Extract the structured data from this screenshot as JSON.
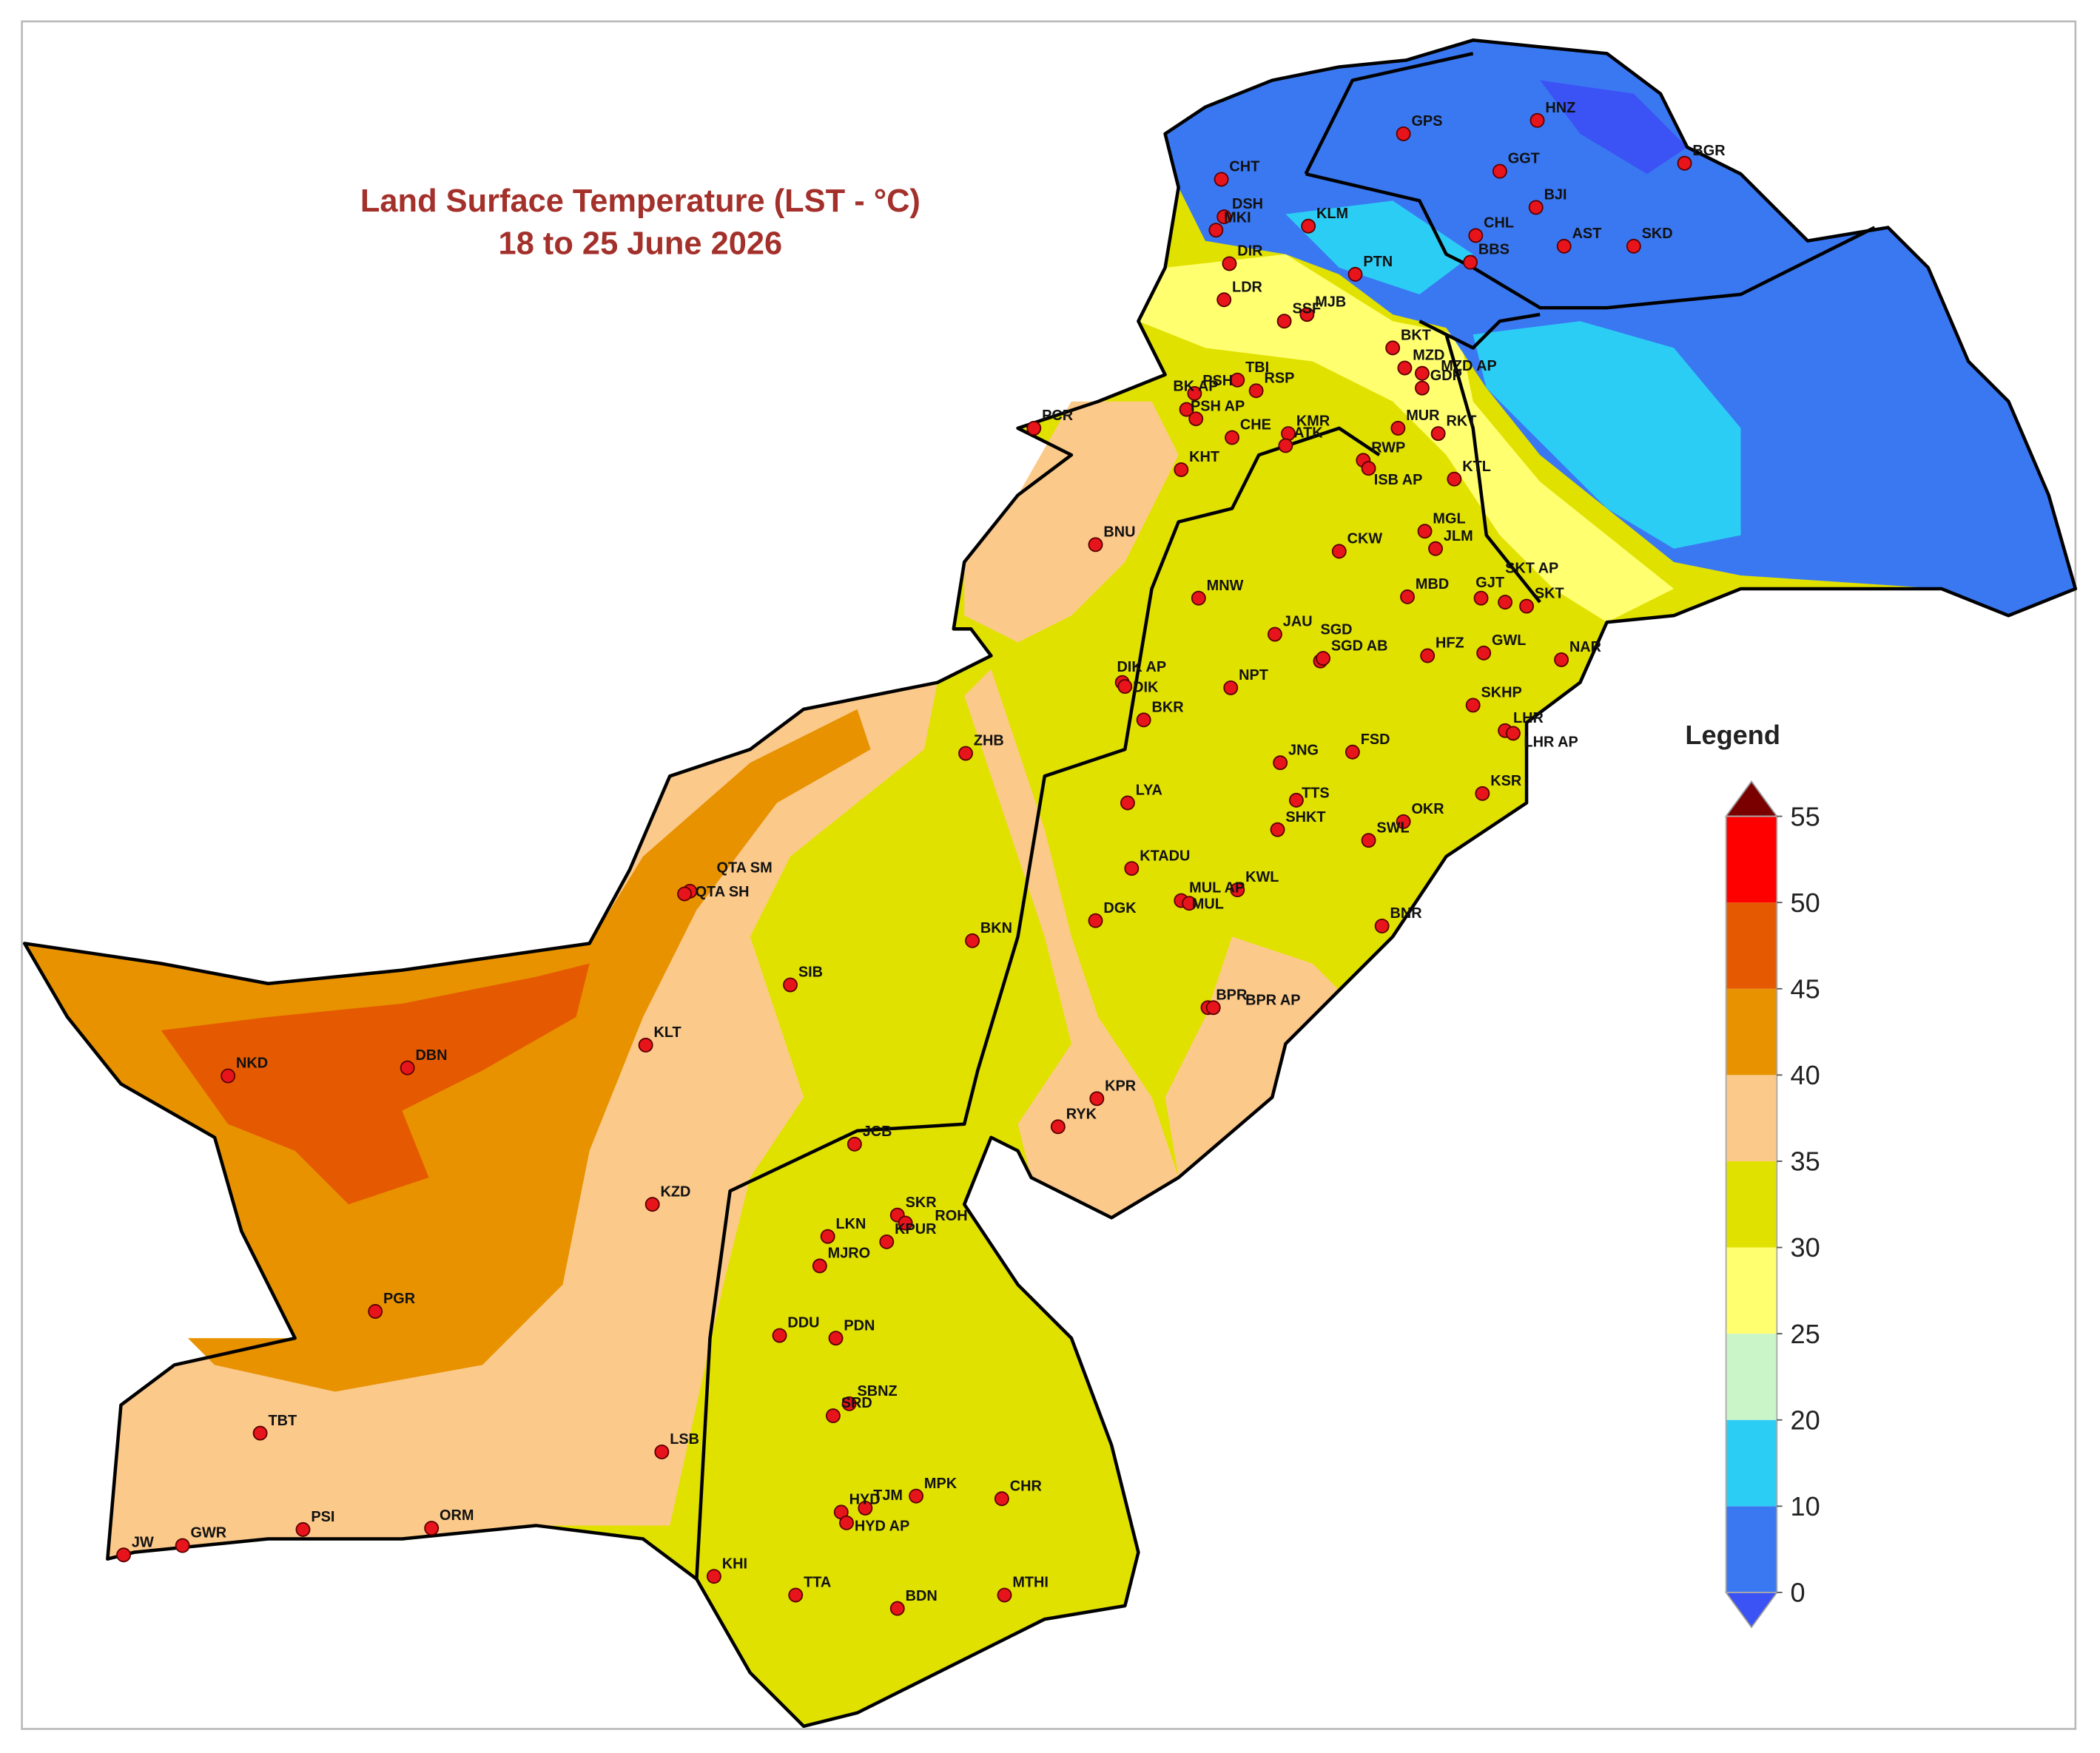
{
  "title": "Land Surface Temperature (LST - °C)",
  "subtitle": "18 to 25 June 2026",
  "legend": {
    "title": "Legend",
    "ticks": [
      0,
      10,
      20,
      25,
      30,
      35,
      40,
      45,
      50,
      55
    ],
    "colors": [
      "#3a78f2",
      "#2ccdf5",
      "#c9f5c9",
      "#ffff70",
      "#e1e100",
      "#fbc98a",
      "#e89200",
      "#e55a00",
      "#ff0000"
    ],
    "under_color": "#3b52f5",
    "over_color": "#7a0000"
  },
  "stations": [
    "HNZ",
    "GPS",
    "BGR",
    "GGT",
    "CHT",
    "BJI",
    "DSH",
    "MKI",
    "KLM",
    "CHL",
    "AST",
    "SKD",
    "BBS",
    "PTN",
    "DIR",
    "LDR",
    "SSF",
    "MJB",
    "BKT",
    "MZD",
    "MZD AP",
    "TBI",
    "PSH",
    "BK AP",
    "PSH AP",
    "RSP",
    "GDP",
    "MUR",
    "RKT",
    "PCR",
    "CHE",
    "KMR",
    "ATK",
    "RWP",
    "ISB AP",
    "KHT",
    "KTL",
    "MGL",
    "JLM",
    "BNU",
    "CKW",
    "MNW",
    "MBD",
    "GJT",
    "SKT AP",
    "SKT",
    "JAU",
    "SGD",
    "SGD AB",
    "HFZ",
    "GWL",
    "NAR",
    "DIK AP",
    "DIK",
    "NPT",
    "SKHP",
    "LHR",
    "LHR AP",
    "BKR",
    "ZHB",
    "FSD",
    "JNG",
    "LYA",
    "TTS",
    "KSR",
    "OKR",
    "SHKT",
    "SWL",
    "QTA SM",
    "QTA SH",
    "KTADU",
    "MUL AP",
    "MUL",
    "KWL",
    "DGK",
    "BNR",
    "BKN",
    "SIB",
    "BPR",
    "BPR AP",
    "KLT",
    "NKD",
    "DBN",
    "KPR",
    "RYK",
    "JCB",
    "KZD",
    "SKR",
    "ROH",
    "LKN",
    "KPUR",
    "MJRO",
    "PGR",
    "DDU",
    "PDN",
    "SBNZ",
    "SRD",
    "TBT",
    "LSB",
    "HYD",
    "TJM",
    "MPK",
    "CHR",
    "HYD AP",
    "PSI",
    "ORM",
    "JW",
    "GWR",
    "KHI",
    "TTA",
    "BDN",
    "MTHI"
  ]
}
